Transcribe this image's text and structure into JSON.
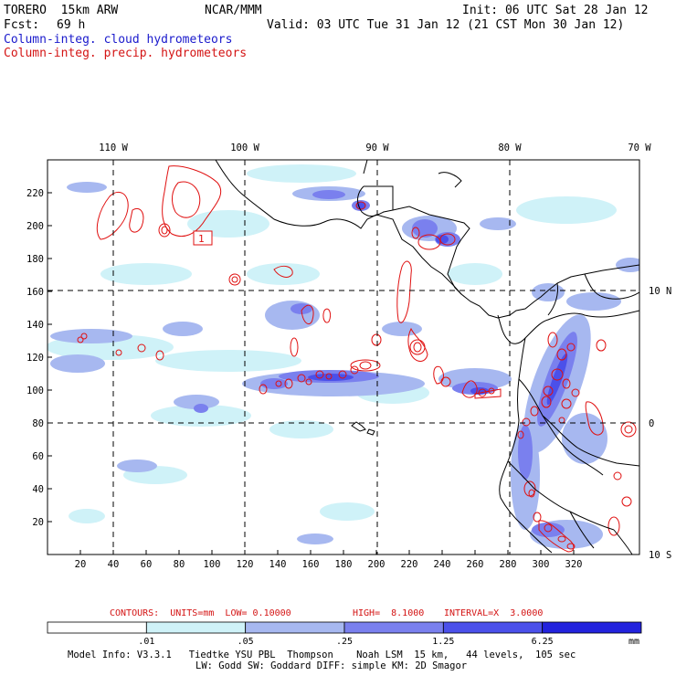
{
  "header": {
    "model": "TORERO  15km ARW",
    "org": "NCAR/MMM",
    "init": "Init: 06 UTC Sat 28 Jan 12",
    "fcst_label": "Fcst:",
    "fcst_value": "69 h",
    "valid": "Valid: 03 UTC Tue 31 Jan 12 (21 CST Mon 30 Jan 12)",
    "field1": "Column-integ. cloud hydrometeors",
    "field2": "Column-integ. precip. hydrometeors"
  },
  "map": {
    "lon_labels": [
      "110 W",
      "100 W",
      "90 W",
      "80 W",
      "70 W"
    ],
    "lat_labels": [
      "10 N",
      "0",
      "10 S"
    ],
    "x_ticks": [
      "20",
      "40",
      "60",
      "80",
      "100",
      "120",
      "140",
      "160",
      "180",
      "200",
      "220",
      "240",
      "260",
      "280",
      "300",
      "320"
    ],
    "y_ticks": [
      "20",
      "40",
      "60",
      "80",
      "100",
      "120",
      "140",
      "160",
      "180",
      "200",
      "220"
    ],
    "contour_label": "1",
    "colors": {
      "c1": "#cff2f8",
      "c2": "#a7b8f0",
      "c3": "#7a80ee",
      "c4": "#4b50ea",
      "c5": "#2222dd",
      "contour": "#e01010",
      "coast": "#000000"
    }
  },
  "contours_note": {
    "units": "CONTOURS:  UNITS=mm  LOW= 0.10000",
    "high": "HIGH=  8.1000",
    "interval": "INTERVAL=X  3.0000"
  },
  "colorbar": {
    "labels": [
      ".01",
      ".05",
      ".25",
      "1.25",
      "6.25"
    ],
    "unit": "mm",
    "colors": [
      "#ffffff",
      "#cff2f8",
      "#a7b8f0",
      "#7a80ee",
      "#4b50ea",
      "#2222dd"
    ]
  },
  "footer": {
    "line1": "Model Info: V3.3.1   Tiedtke YSU PBL  Thompson    Noah LSM  15 km,   44 levels,  105 sec",
    "line2": "LW: Godd SW: Goddard DIFF: simple KM: 2D Smagor"
  }
}
